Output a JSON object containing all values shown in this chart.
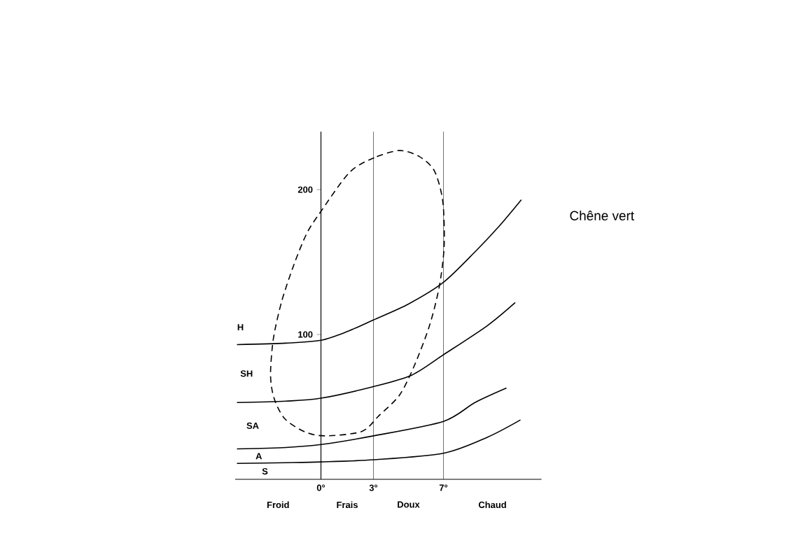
{
  "chart_data": {
    "type": "line",
    "title": "Chêne vert",
    "xlim": [
      -4.9,
      12.6
    ],
    "ylim": [
      0,
      240
    ],
    "xticks": [
      {
        "value": 0,
        "label": "0°"
      },
      {
        "value": 3,
        "label": "3°"
      },
      {
        "value": 7,
        "label": "7°"
      }
    ],
    "yticks": [
      100,
      200
    ],
    "grid": "x",
    "marker": "none",
    "series": [
      {
        "color": "#000000",
        "line_style": "solid",
        "x": [
          -4.8,
          -2,
          0,
          1.5,
          3,
          5,
          7,
          8.8,
          10.2,
          11.45
        ],
        "values": [
          93,
          94,
          96,
          102,
          110,
          121,
          136,
          157,
          175,
          193
        ]
      },
      {
        "color": "#000000",
        "line_style": "solid",
        "x": [
          -4.8,
          -2,
          0,
          3,
          5.2,
          7,
          9.5,
          11.1
        ],
        "values": [
          53,
          54,
          56,
          64,
          72,
          86,
          106,
          122
        ]
      },
      {
        "color": "#000000",
        "line_style": "solid",
        "x": [
          -4.8,
          -2,
          0,
          3,
          7,
          8.8,
          10.6
        ],
        "values": [
          21,
          22,
          24,
          30,
          40,
          53,
          63
        ]
      },
      {
        "color": "#000000",
        "line_style": "solid",
        "x": [
          -4.8,
          -2,
          0,
          3,
          7,
          9.5,
          11.4
        ],
        "values": [
          11,
          11.5,
          12,
          13.5,
          18,
          29,
          41
        ]
      }
    ],
    "annotations": [
      "H",
      "SH",
      "SA",
      "A",
      "S",
      "Froid",
      "Frais",
      "Doux",
      "Chaud"
    ]
  }
}
